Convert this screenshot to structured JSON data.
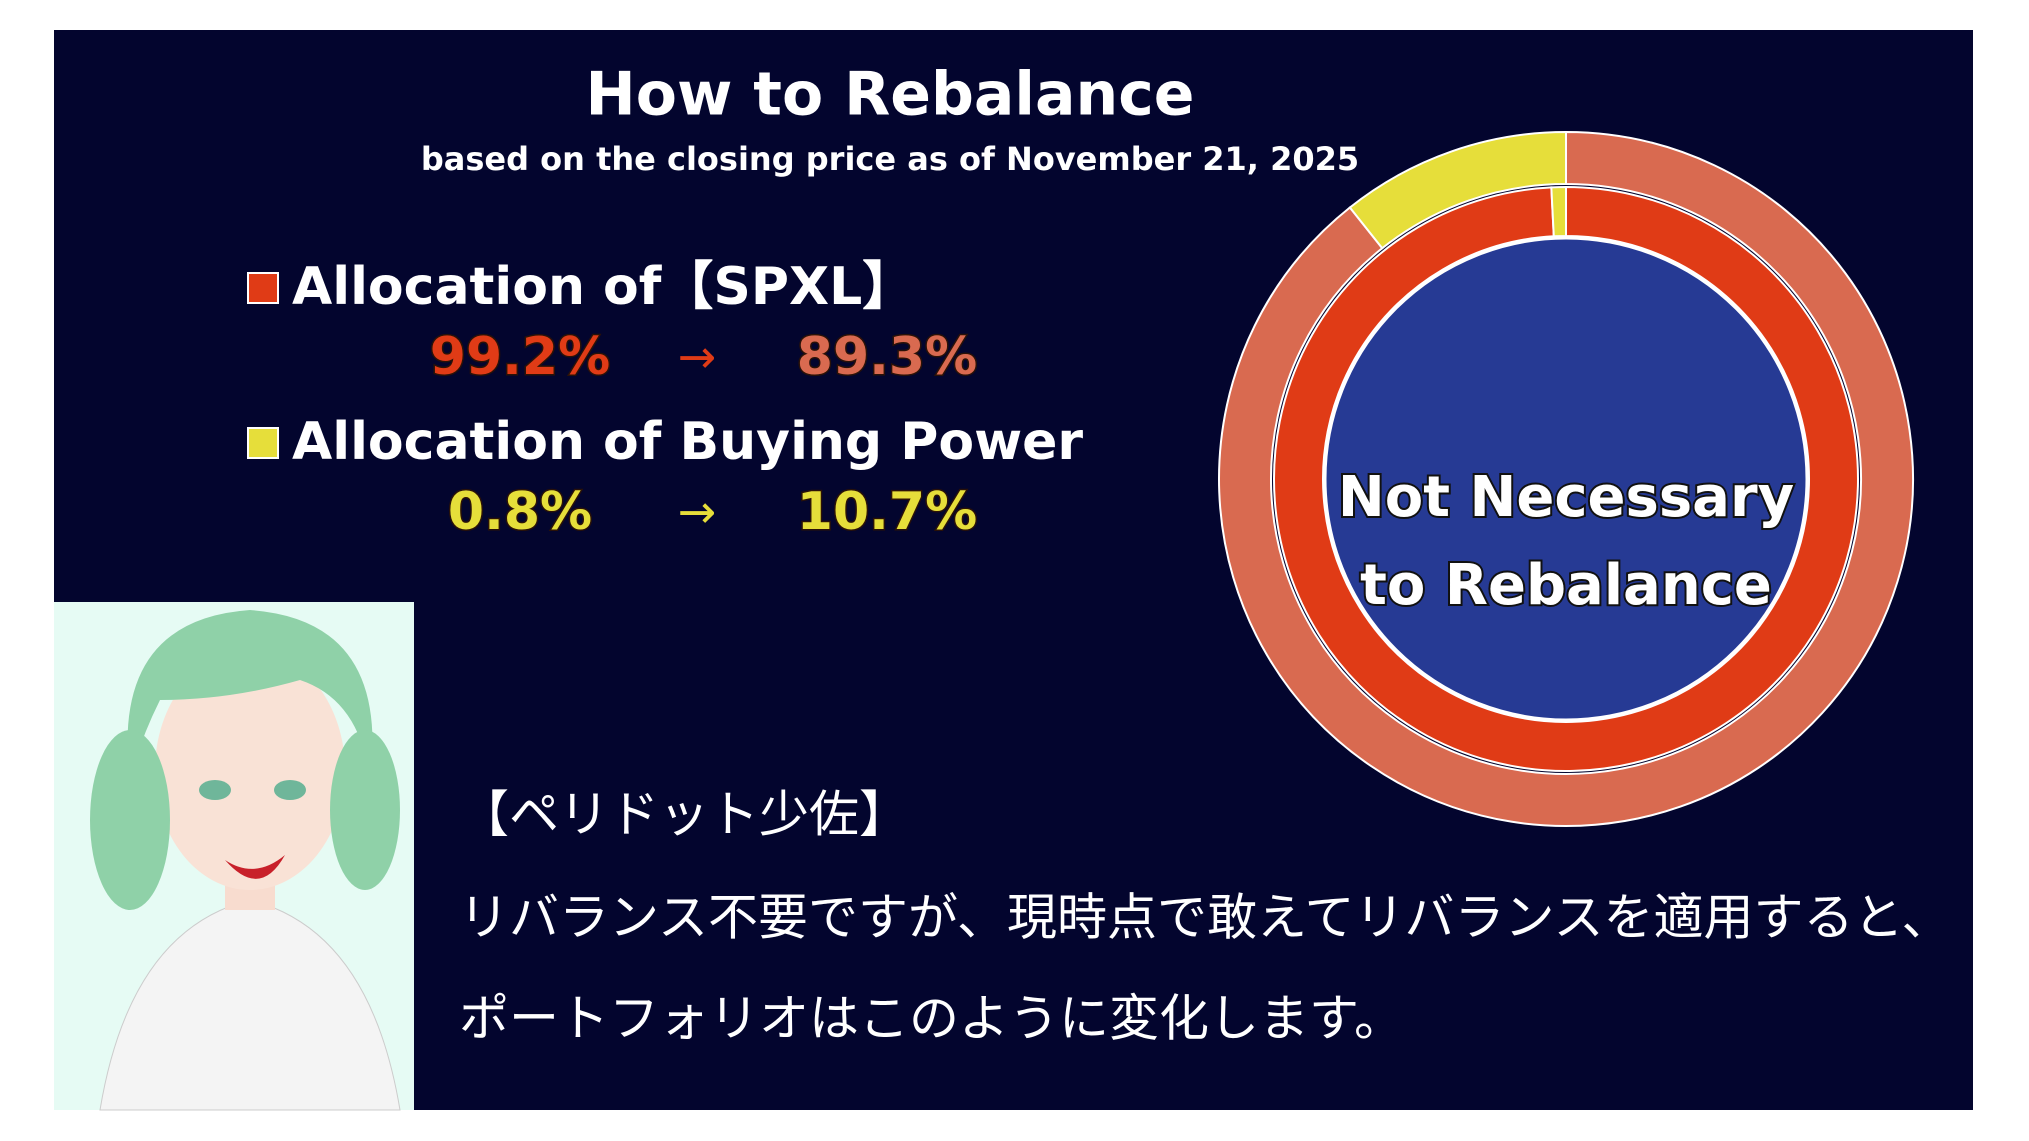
{
  "chart_data": {
    "type": "donut",
    "title": "How to Rebalance",
    "subtitle": "based on the closing price as of November 21, 2025",
    "center_label": [
      "Not Necessary",
      "to Rebalance"
    ],
    "arrow": "→",
    "series": [
      {
        "name": "Allocation of【SPXL】",
        "color": "#e03b16",
        "outer_color": "#d96a50",
        "values": [
          99.2,
          89.3
        ],
        "value_labels": [
          "99.2%",
          "89.3%"
        ]
      },
      {
        "name": "Allocation of Buying Power",
        "color": "#e6de3a",
        "outer_color": "#e6de3a",
        "values": [
          0.8,
          10.7
        ],
        "value_labels": [
          "0.8%",
          "10.7%"
        ]
      }
    ]
  },
  "caption": {
    "speaker": "【ペリドット少佐】",
    "lines": [
      "リバランス不要ですが、現時点で敢えてリバランスを適用すると、",
      "ポートフォリオはこのように変化します。"
    ]
  }
}
